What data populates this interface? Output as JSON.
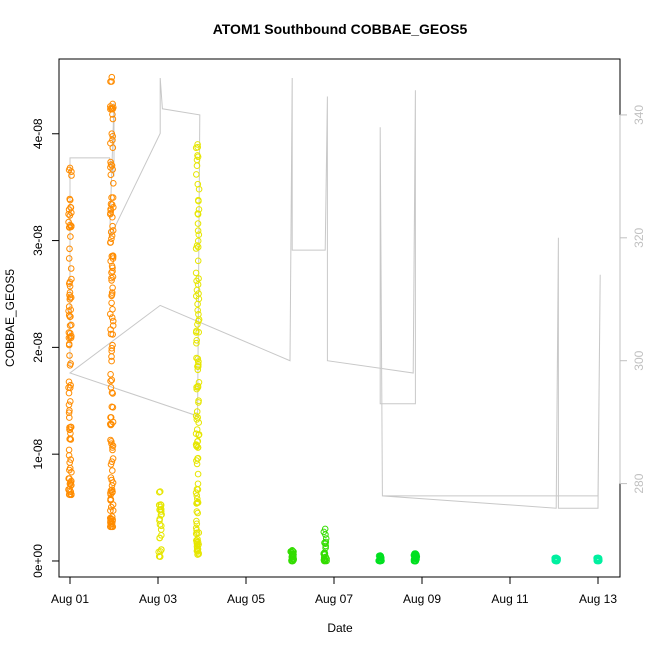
{
  "chart_data": {
    "type": "scatter",
    "title": "ATOM1 Southbound COBBAE_GEOS5",
    "xlabel": "Date",
    "ylabel": "COBBAE_GEOS5",
    "x_ticks": [
      "Aug 01",
      "Aug 03",
      "Aug 05",
      "Aug 07",
      "Aug 09",
      "Aug 11",
      "Aug 13"
    ],
    "y_ticks": [
      "0e+00",
      "1e-08",
      "2e-08",
      "3e-08",
      "4e-08"
    ],
    "y2_ticks": [
      "280",
      "300",
      "320",
      "340"
    ],
    "xlim_days": [
      0.75,
      13.5
    ],
    "ylim": [
      -1.5e-09,
      4.7e-08
    ],
    "y2lim": [
      264.8,
      349.1
    ],
    "grid": false,
    "legend": "none",
    "series": [
      {
        "color": "#ff8c00",
        "clusters": [
          {
            "x": 1.0,
            "ymin": 6.2e-09,
            "ymax": 3.68e-08
          },
          {
            "x": 1.95,
            "ymin": 3.2e-09,
            "ymax": 4.53e-08
          }
        ]
      },
      {
        "color": "#e6e600",
        "clusters": [
          {
            "x": 3.05,
            "ymin": 4e-10,
            "ymax": 6.5e-09
          },
          {
            "x": 3.9,
            "ymin": 6e-10,
            "ymax": 3.9e-08
          }
        ]
      },
      {
        "color": "#33dd00",
        "clusters": [
          {
            "x": 6.05,
            "ymin": 0,
            "ymax": 1e-09
          },
          {
            "x": 6.8,
            "ymin": 0,
            "ymax": 3e-09
          }
        ]
      },
      {
        "color": "#00e020",
        "clusters": [
          {
            "x": 8.05,
            "ymin": 0,
            "ymax": 5e-10
          },
          {
            "x": 8.85,
            "ymin": 0,
            "ymax": 7e-10
          }
        ]
      },
      {
        "color": "#00f0a0",
        "clusters": [
          {
            "x": 12.05,
            "ymin": 0,
            "ymax": 3e-10
          },
          {
            "x": 13.0,
            "ymin": 0,
            "ymax": 3e-10
          }
        ]
      }
    ],
    "secondary_line": {
      "color": "#c8c8c8",
      "points": [
        {
          "x": 1.0,
          "y": 299
        },
        {
          "x": 1.0,
          "y": 333
        },
        {
          "x": 1.9,
          "y": 333
        },
        {
          "x": 2.0,
          "y": 330
        },
        {
          "x": 2.0,
          "y": 342
        },
        {
          "x": 1.9,
          "y": 320
        },
        {
          "x": 3.05,
          "y": 337
        },
        {
          "x": 3.05,
          "y": 346
        },
        {
          "x": 3.1,
          "y": 341
        },
        {
          "x": 3.95,
          "y": 340
        },
        {
          "x": 3.9,
          "y": 291
        },
        {
          "x": 1.0,
          "y": 298
        },
        {
          "x": 3.05,
          "y": 309
        },
        {
          "x": 6.0,
          "y": 300
        },
        {
          "x": 6.05,
          "y": 346
        },
        {
          "x": 6.05,
          "y": 318
        },
        {
          "x": 6.8,
          "y": 318
        },
        {
          "x": 6.85,
          "y": 343
        },
        {
          "x": 6.85,
          "y": 300
        },
        {
          "x": 8.8,
          "y": 298
        },
        {
          "x": 8.85,
          "y": 344
        },
        {
          "x": 8.85,
          "y": 293
        },
        {
          "x": 8.05,
          "y": 293
        },
        {
          "x": 8.05,
          "y": 338
        },
        {
          "x": 8.1,
          "y": 278
        },
        {
          "x": 12.05,
          "y": 276
        },
        {
          "x": 12.1,
          "y": 320
        },
        {
          "x": 12.1,
          "y": 276
        },
        {
          "x": 13.0,
          "y": 276
        },
        {
          "x": 13.05,
          "y": 314
        },
        {
          "x": 13.0,
          "y": 278
        },
        {
          "x": 8.1,
          "y": 278
        }
      ]
    }
  }
}
